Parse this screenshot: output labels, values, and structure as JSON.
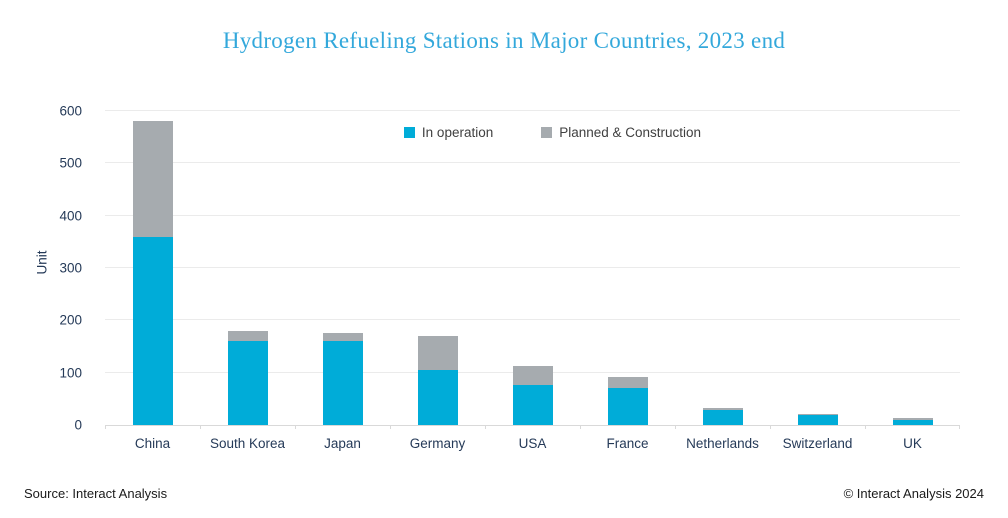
{
  "title": "Hydrogen Refueling Stations in Major Countries, 2023 end",
  "footer": {
    "source": "Source: Interact Analysis",
    "copyright": "© Interact Analysis 2024"
  },
  "colors": {
    "title_text": "#33a8db",
    "axis_text": "#253a58",
    "in_operation": "#00acd8",
    "planned_construction": "#a6abaf",
    "gridline": "#ebebeb",
    "axis_line": "#d9d9d9"
  },
  "chart_data": {
    "type": "bar",
    "stacked": true,
    "title": "Hydrogen Refueling Stations in Major Countries, 2023 end",
    "categories": [
      "China",
      "South Korea",
      "Japan",
      "Germany",
      "USA",
      "France",
      "Netherlands",
      "Switzerland",
      "UK"
    ],
    "series": [
      {
        "name": "In operation",
        "color": "#00acd8",
        "values": [
          360,
          160,
          160,
          105,
          76,
          70,
          29,
          20,
          10
        ]
      },
      {
        "name": "Planned & Construction",
        "color": "#a6abaf",
        "values": [
          220,
          20,
          15,
          65,
          36,
          21,
          4,
          2,
          4
        ]
      }
    ],
    "xlabel": "",
    "ylabel": "Unit",
    "ylim": [
      0,
      600
    ],
    "ytick_step": 100,
    "grid": true,
    "legend_position": "top-center"
  }
}
